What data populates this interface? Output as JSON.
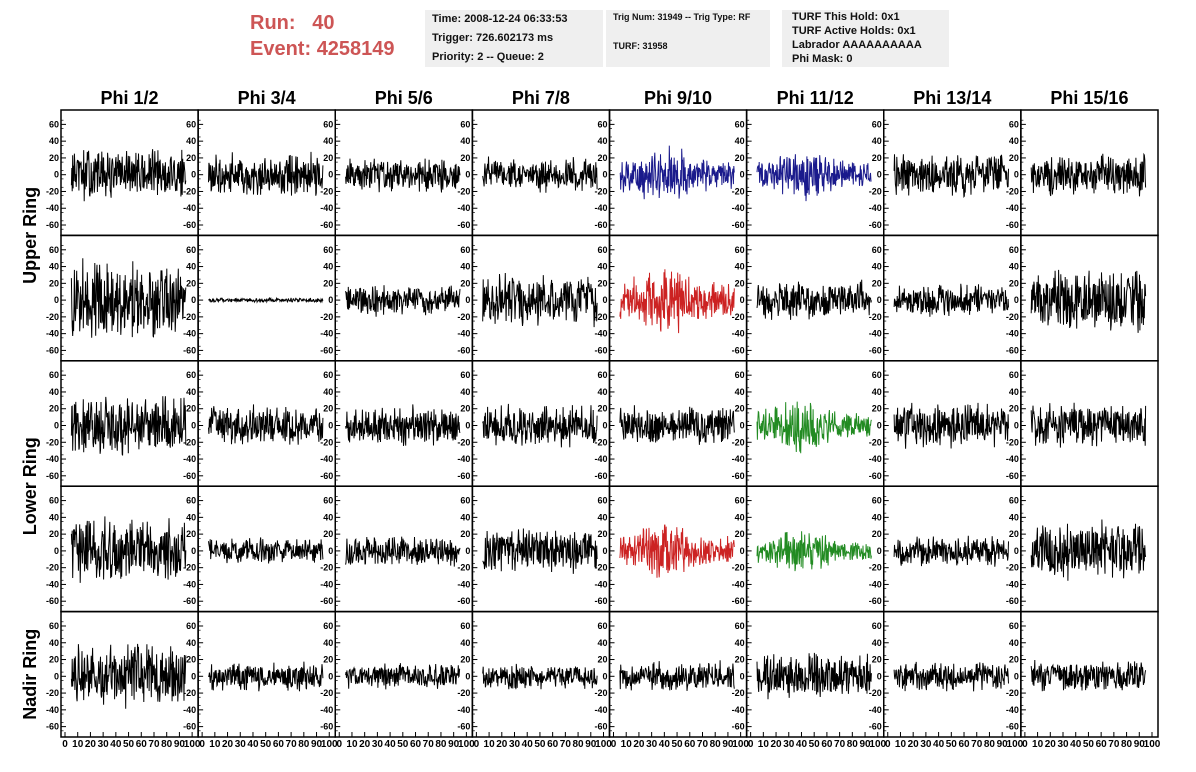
{
  "header": {
    "run_label": "Run:",
    "run_value": "40",
    "event_label": "Event:",
    "event_value": "4258149",
    "info_time": "Time: 2008-12-24 06:33:53",
    "info_trigger": "Trigger: 726.602173 ms",
    "info_priority": "Priority: 2 -- Queue: 2",
    "info_trig": "Trig Num: 31949 -- Trig Type: RF",
    "info_turf": "TURF: 31958",
    "info_hold": "TURF This Hold: 0x1",
    "info_active": "TURF Active Holds: 0x1",
    "info_labrador": "Labrador AAAAAAAAAA",
    "info_mask": "Phi Mask: 0"
  },
  "chart_data": {
    "type": "line",
    "columns": [
      "Phi 1/2",
      "Phi 3/4",
      "Phi 5/6",
      "Phi 7/8",
      "Phi 9/10",
      "Phi 11/12",
      "Phi 13/14",
      "Phi 15/16"
    ],
    "rows": [
      "Upper Ring",
      "Lower Ring",
      "Nadir Ring"
    ],
    "ylim": [
      -70,
      70
    ],
    "yticks": [
      -60,
      -40,
      -20,
      0,
      20,
      40,
      60
    ],
    "xlim": [
      0,
      100
    ],
    "xticks": [
      0,
      10,
      20,
      30,
      40,
      50,
      60,
      70,
      80,
      90,
      100
    ],
    "panels": [
      {
        "row": 0,
        "col": 0,
        "color": "#000000",
        "amplitude": 25
      },
      {
        "row": 0,
        "col": 1,
        "color": "#000000",
        "amplitude": 20
      },
      {
        "row": 0,
        "col": 2,
        "color": "#000000",
        "amplitude": 16
      },
      {
        "row": 0,
        "col": 3,
        "color": "#000000",
        "amplitude": 16
      },
      {
        "row": 0,
        "col": 4,
        "color": "#1a1a8c",
        "amplitude": 25
      },
      {
        "row": 0,
        "col": 5,
        "color": "#1a1a8c",
        "amplitude": 22
      },
      {
        "row": 0,
        "col": 6,
        "color": "#000000",
        "amplitude": 20
      },
      {
        "row": 0,
        "col": 7,
        "color": "#000000",
        "amplitude": 20
      },
      {
        "row": 1,
        "col": 0,
        "color": "#000000",
        "amplitude": 38
      },
      {
        "row": 1,
        "col": 1,
        "color": "#000000",
        "amplitude": 2
      },
      {
        "row": 1,
        "col": 2,
        "color": "#000000",
        "amplitude": 15
      },
      {
        "row": 1,
        "col": 3,
        "color": "#000000",
        "amplitude": 24
      },
      {
        "row": 1,
        "col": 4,
        "color": "#cc2222",
        "amplitude": 30
      },
      {
        "row": 1,
        "col": 5,
        "color": "#000000",
        "amplitude": 18
      },
      {
        "row": 1,
        "col": 6,
        "color": "#000000",
        "amplitude": 15
      },
      {
        "row": 1,
        "col": 7,
        "color": "#000000",
        "amplitude": 30
      },
      {
        "row": 2,
        "col": 0,
        "color": "#000000",
        "amplitude": 28
      },
      {
        "row": 2,
        "col": 1,
        "color": "#000000",
        "amplitude": 18
      },
      {
        "row": 2,
        "col": 2,
        "color": "#000000",
        "amplitude": 20
      },
      {
        "row": 2,
        "col": 3,
        "color": "#000000",
        "amplitude": 20
      },
      {
        "row": 2,
        "col": 4,
        "color": "#000000",
        "amplitude": 18
      },
      {
        "row": 2,
        "col": 5,
        "color": "#228b22",
        "amplitude": 22
      },
      {
        "row": 2,
        "col": 6,
        "color": "#000000",
        "amplitude": 22
      },
      {
        "row": 2,
        "col": 7,
        "color": "#000000",
        "amplitude": 20
      },
      {
        "row": 3,
        "col": 0,
        "color": "#000000",
        "amplitude": 32
      },
      {
        "row": 3,
        "col": 1,
        "color": "#000000",
        "amplitude": 12
      },
      {
        "row": 3,
        "col": 2,
        "color": "#000000",
        "amplitude": 14
      },
      {
        "row": 3,
        "col": 3,
        "color": "#000000",
        "amplitude": 22
      },
      {
        "row": 3,
        "col": 4,
        "color": "#cc2222",
        "amplitude": 24
      },
      {
        "row": 3,
        "col": 5,
        "color": "#228b22",
        "amplitude": 18
      },
      {
        "row": 3,
        "col": 6,
        "color": "#000000",
        "amplitude": 14
      },
      {
        "row": 3,
        "col": 7,
        "color": "#000000",
        "amplitude": 28
      },
      {
        "row": 4,
        "col": 0,
        "color": "#000000",
        "amplitude": 30
      },
      {
        "row": 4,
        "col": 1,
        "color": "#000000",
        "amplitude": 14
      },
      {
        "row": 4,
        "col": 2,
        "color": "#000000",
        "amplitude": 12
      },
      {
        "row": 4,
        "col": 3,
        "color": "#000000",
        "amplitude": 12
      },
      {
        "row": 4,
        "col": 4,
        "color": "#000000",
        "amplitude": 14
      },
      {
        "row": 4,
        "col": 5,
        "color": "#000000",
        "amplitude": 22
      },
      {
        "row": 4,
        "col": 6,
        "color": "#000000",
        "amplitude": 14
      },
      {
        "row": 4,
        "col": 7,
        "color": "#000000",
        "amplitude": 14
      }
    ]
  }
}
